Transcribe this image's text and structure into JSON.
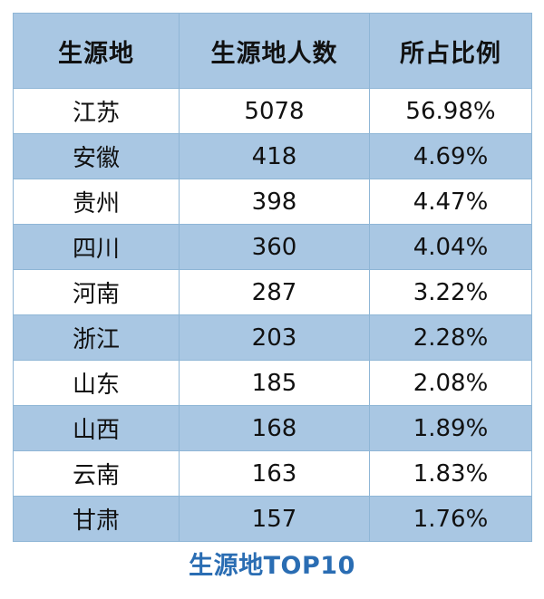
{
  "caption": "生源地TOP10",
  "colors": {
    "header_bg": "#a9c7e3",
    "stripe_bg": "#a9c7e3",
    "border": "#8fb6d6",
    "caption_text": "#2a6db3"
  },
  "chart_data": {
    "type": "table",
    "title": "生源地TOP10",
    "columns": [
      "生源地",
      "生源地人数",
      "所占比例"
    ],
    "rows": [
      [
        "江苏",
        "5078",
        "56.98%"
      ],
      [
        "安徽",
        "418",
        "4.69%"
      ],
      [
        "贵州",
        "398",
        "4.47%"
      ],
      [
        "四川",
        "360",
        "4.04%"
      ],
      [
        "河南",
        "287",
        "3.22%"
      ],
      [
        "浙江",
        "203",
        "2.28%"
      ],
      [
        "山东",
        "185",
        "2.08%"
      ],
      [
        "山西",
        "168",
        "1.89%"
      ],
      [
        "云南",
        "163",
        "1.83%"
      ],
      [
        "甘肃",
        "157",
        "1.76%"
      ]
    ]
  }
}
